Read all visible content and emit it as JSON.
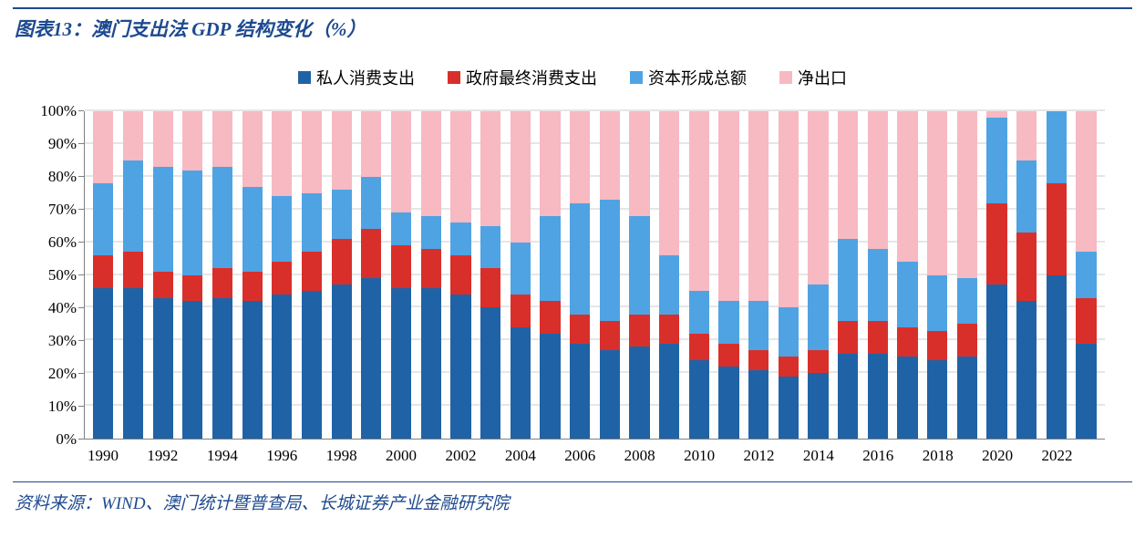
{
  "title": "图表13：澳门支出法 GDP 结构变化（%）",
  "source": "资料来源：WIND、澳门统计暨普查局、长城证券产业金融研究院",
  "chart": {
    "type": "stacked_bar_100",
    "title_color": "#1d4a8f",
    "background_color": "#ffffff",
    "grid_color": "#e6e6e6",
    "axis_color": "#808080",
    "label_fontsize": 17,
    "title_fontsize": 21,
    "series": [
      {
        "key": "private",
        "label": "私人消费支出",
        "color": "#1f63a6"
      },
      {
        "key": "gov",
        "label": "政府最终消费支出",
        "color": "#d92f2b"
      },
      {
        "key": "capital",
        "label": "资本形成总额",
        "color": "#4fa3e3"
      },
      {
        "key": "netexp",
        "label": "净出口",
        "color": "#f7b9c2"
      }
    ],
    "y": {
      "min": 0,
      "max": 100,
      "step": 10,
      "suffix": "%"
    },
    "x_label_step": 2,
    "years": [
      1990,
      1991,
      1992,
      1993,
      1994,
      1995,
      1996,
      1997,
      1998,
      1999,
      2000,
      2001,
      2002,
      2003,
      2004,
      2005,
      2006,
      2007,
      2008,
      2009,
      2010,
      2011,
      2012,
      2013,
      2014,
      2015,
      2016,
      2017,
      2018,
      2019,
      2020,
      2021,
      2022,
      2023
    ],
    "data": [
      {
        "private": 46,
        "gov": 10,
        "capital": 22,
        "netexp": 22
      },
      {
        "private": 46,
        "gov": 11,
        "capital": 28,
        "netexp": 15
      },
      {
        "private": 43,
        "gov": 8,
        "capital": 32,
        "netexp": 17
      },
      {
        "private": 42,
        "gov": 8,
        "capital": 32,
        "netexp": 18
      },
      {
        "private": 43,
        "gov": 9,
        "capital": 31,
        "netexp": 17
      },
      {
        "private": 42,
        "gov": 9,
        "capital": 26,
        "netexp": 23
      },
      {
        "private": 44,
        "gov": 10,
        "capital": 20,
        "netexp": 26
      },
      {
        "private": 45,
        "gov": 12,
        "capital": 18,
        "netexp": 25
      },
      {
        "private": 47,
        "gov": 14,
        "capital": 15,
        "netexp": 24
      },
      {
        "private": 49,
        "gov": 15,
        "capital": 16,
        "netexp": 20
      },
      {
        "private": 46,
        "gov": 13,
        "capital": 10,
        "netexp": 31
      },
      {
        "private": 46,
        "gov": 12,
        "capital": 10,
        "netexp": 32
      },
      {
        "private": 44,
        "gov": 12,
        "capital": 10,
        "netexp": 34
      },
      {
        "private": 40,
        "gov": 12,
        "capital": 13,
        "netexp": 35
      },
      {
        "private": 34,
        "gov": 10,
        "capital": 16,
        "netexp": 40
      },
      {
        "private": 32,
        "gov": 10,
        "capital": 26,
        "netexp": 32
      },
      {
        "private": 29,
        "gov": 9,
        "capital": 34,
        "netexp": 28
      },
      {
        "private": 27,
        "gov": 9,
        "capital": 37,
        "netexp": 27
      },
      {
        "private": 28,
        "gov": 10,
        "capital": 30,
        "netexp": 32
      },
      {
        "private": 29,
        "gov": 9,
        "capital": 18,
        "netexp": 44
      },
      {
        "private": 24,
        "gov": 8,
        "capital": 13,
        "netexp": 55
      },
      {
        "private": 22,
        "gov": 7,
        "capital": 13,
        "netexp": 58
      },
      {
        "private": 21,
        "gov": 6,
        "capital": 15,
        "netexp": 58
      },
      {
        "private": 19,
        "gov": 6,
        "capital": 15,
        "netexp": 60
      },
      {
        "private": 20,
        "gov": 7,
        "capital": 20,
        "netexp": 53
      },
      {
        "private": 26,
        "gov": 10,
        "capital": 25,
        "netexp": 39
      },
      {
        "private": 26,
        "gov": 10,
        "capital": 22,
        "netexp": 42
      },
      {
        "private": 25,
        "gov": 9,
        "capital": 20,
        "netexp": 46
      },
      {
        "private": 24,
        "gov": 9,
        "capital": 17,
        "netexp": 50
      },
      {
        "private": 25,
        "gov": 10,
        "capital": 14,
        "netexp": 51
      },
      {
        "private": 47,
        "gov": 25,
        "capital": 26,
        "netexp": 2
      },
      {
        "private": 42,
        "gov": 21,
        "capital": 22,
        "netexp": 15
      },
      {
        "private": 50,
        "gov": 28,
        "capital": 22,
        "netexp": 0
      },
      {
        "private": 29,
        "gov": 14,
        "capital": 14,
        "netexp": 43
      }
    ]
  }
}
